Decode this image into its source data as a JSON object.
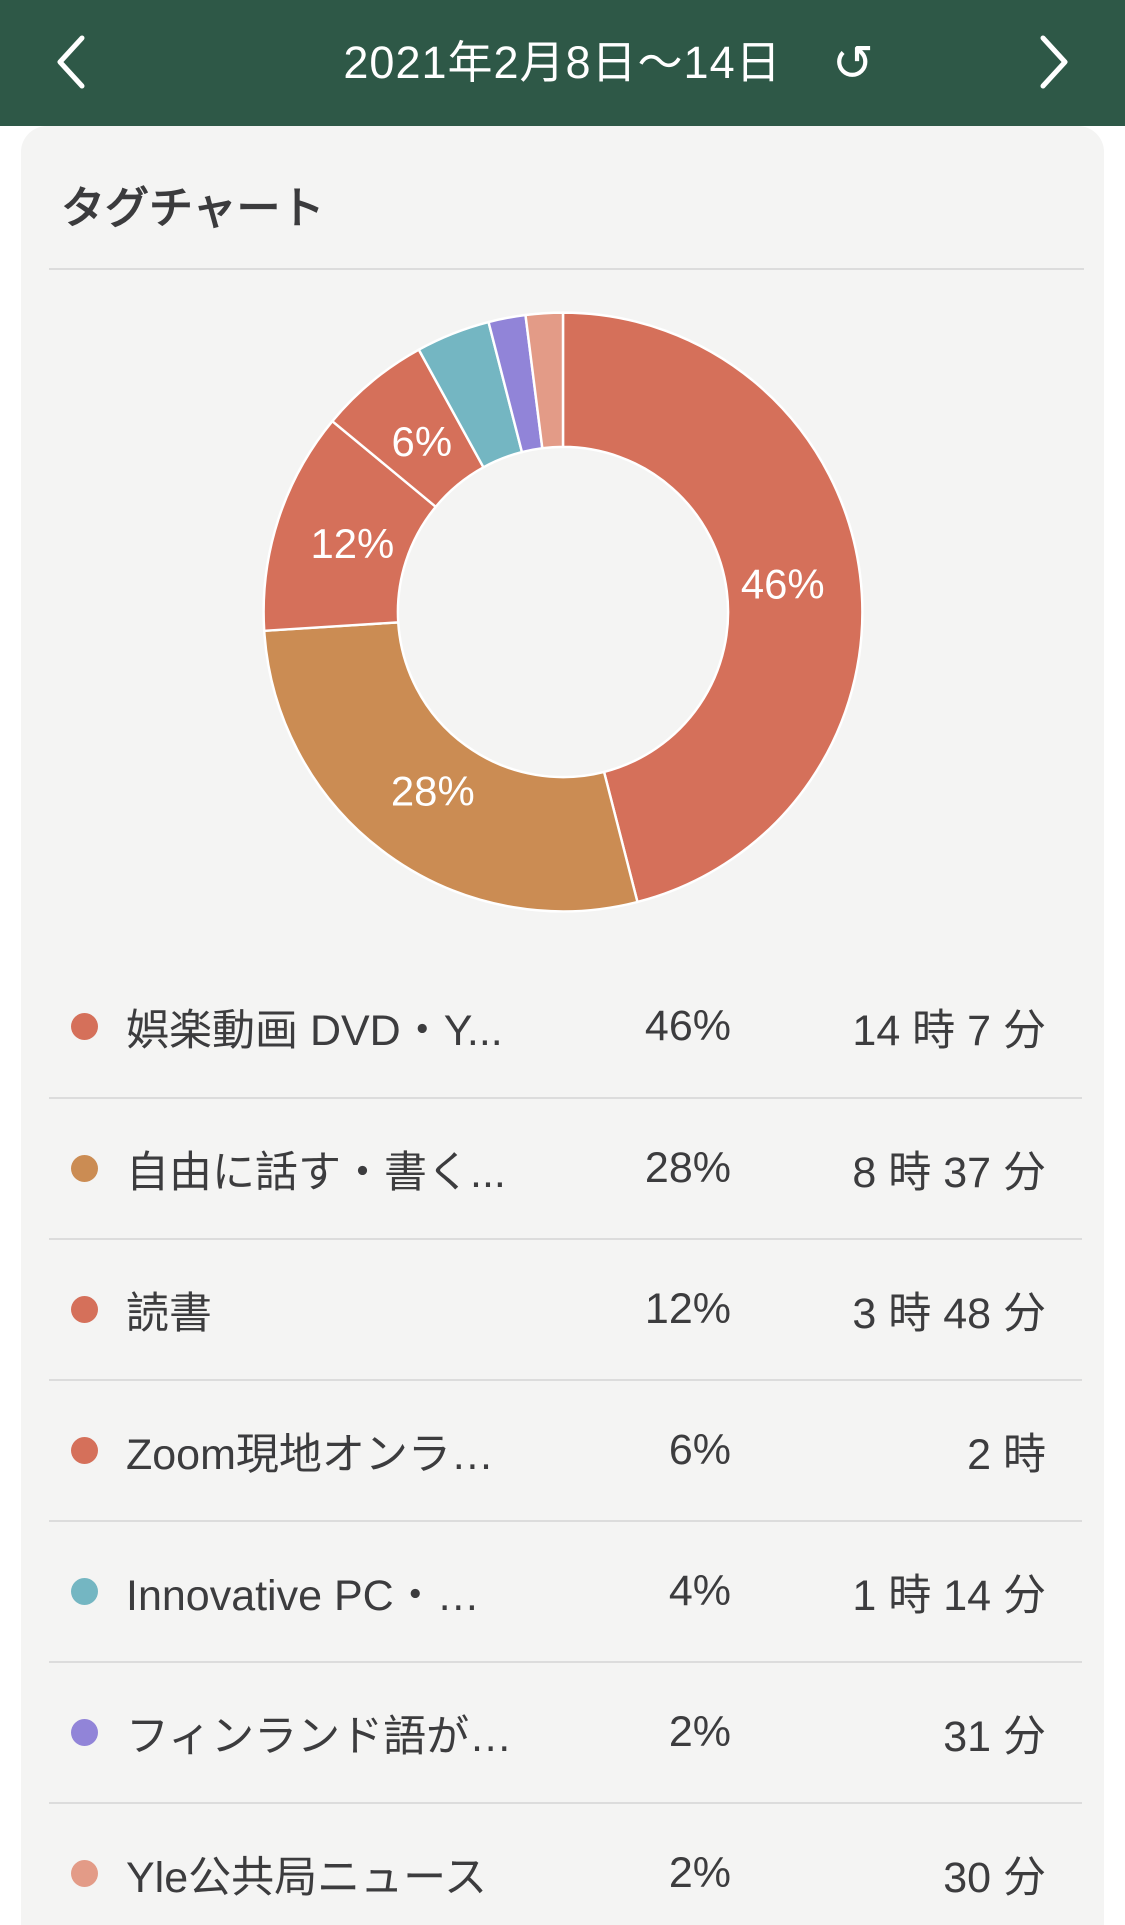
{
  "header": {
    "title": "2021年2月8日〜14日",
    "undo_glyph": "↺",
    "back_icon": "chevron-left",
    "forward_icon": "chevron-right"
  },
  "card": {
    "title": "タグチャート"
  },
  "colors": {
    "header_bg": "#2e5847",
    "card_bg": "#f4f4f3",
    "divider": "#dcdcdc",
    "text": "#3c3c3e"
  },
  "chart_data": {
    "type": "pie",
    "donut": true,
    "title": "タグチャート",
    "start_angle_deg": 0,
    "direction": "clockwise",
    "label_threshold_pct": 5,
    "segments": [
      {
        "label": "娯楽動画 DVD・Y...",
        "percent": 46,
        "time": "14 時 7 分",
        "color": "#d5705a"
      },
      {
        "label": "自由に話す・書く...",
        "percent": 28,
        "time": "8 時 37 分",
        "color": "#cb8c53"
      },
      {
        "label": "読書",
        "percent": 12,
        "time": "3 時 48 分",
        "color": "#d5705a"
      },
      {
        "label": "Zoom現地オンラ…",
        "percent": 6,
        "time": "2 時",
        "color": "#d5705a"
      },
      {
        "label": "Innovative PC・…",
        "percent": 4,
        "time": "1 時 14 分",
        "color": "#74b6c2"
      },
      {
        "label": "フィンランド語が…",
        "percent": 2,
        "time": "31 分",
        "color": "#9184d8"
      },
      {
        "label": "Yle公共局ニュース",
        "percent": 2,
        "time": "30 分",
        "color": "#e39b87"
      }
    ]
  }
}
